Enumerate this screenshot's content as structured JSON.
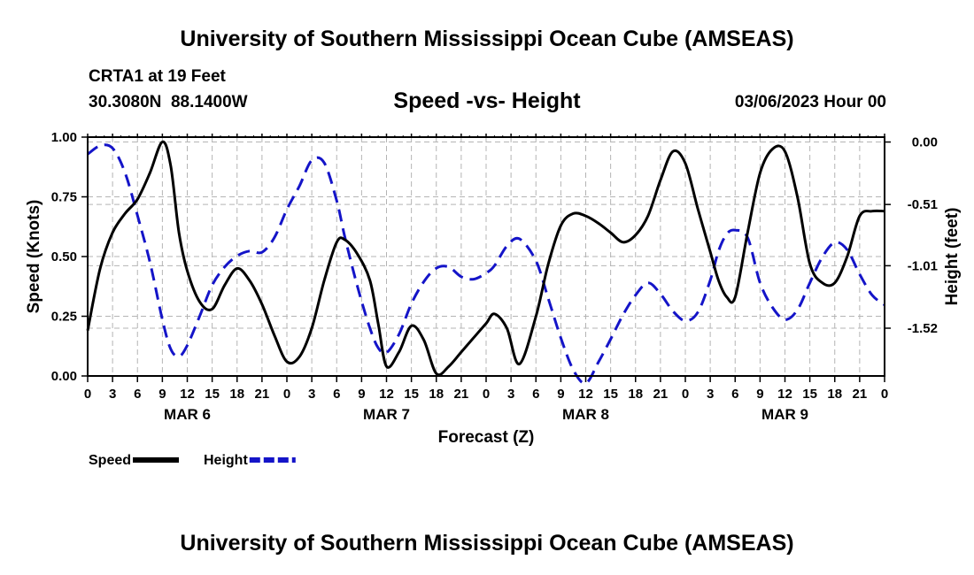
{
  "page": {
    "title_top": "University of Southern Mississippi Ocean Cube (AMSEAS)",
    "title_bottom": "University of Southern Mississippi Ocean Cube (AMSEAS)",
    "station": "CRTA1 at 19 Feet",
    "coords": "30.3080N  88.1400W",
    "datetime": "03/06/2023 Hour 00"
  },
  "chart_data": {
    "type": "line",
    "title": "Speed -vs- Height",
    "xlabel": "Forecast (Z)",
    "ylabel": "Speed (Knots)",
    "y2label": "Height (feet)",
    "x_range": [
      0,
      96
    ],
    "ylim": [
      0,
      1
    ],
    "y2lim": [
      -1.91,
      0.04
    ],
    "x_ticks": [
      0,
      3,
      6,
      9,
      12,
      15,
      18,
      21,
      24,
      27,
      30,
      33,
      36,
      39,
      42,
      45,
      48,
      51,
      54,
      57,
      60,
      63,
      66,
      69,
      72,
      75,
      78,
      81,
      84,
      87,
      90,
      93,
      96
    ],
    "x_tick_labels": [
      "0",
      "3",
      "6",
      "9",
      "12",
      "15",
      "18",
      "21",
      "0",
      "3",
      "6",
      "9",
      "12",
      "15",
      "18",
      "21",
      "0",
      "3",
      "6",
      "9",
      "12",
      "15",
      "18",
      "21",
      "0",
      "3",
      "6",
      "9",
      "12",
      "15",
      "18",
      "21",
      "0"
    ],
    "day_labels": [
      {
        "x": 12,
        "label": "MAR 6"
      },
      {
        "x": 36,
        "label": "MAR 7"
      },
      {
        "x": 60,
        "label": "MAR 8"
      },
      {
        "x": 84,
        "label": "MAR 9"
      }
    ],
    "y_ticks": [
      0,
      0.25,
      0.5,
      0.75,
      1.0
    ],
    "y_tick_labels": [
      "0.00",
      "0.25",
      "0.50",
      "0.75",
      "1.00"
    ],
    "y2_ticks": [
      0.0,
      -0.51,
      -1.01,
      -1.52
    ],
    "y2_tick_labels": [
      "0.00",
      "-0.51",
      "-1.01",
      "-1.52"
    ],
    "legend": [
      "Speed",
      "Height"
    ],
    "series": [
      {
        "name": "Speed",
        "color": "#000000",
        "axis": "left",
        "dash": "solid",
        "x": [
          0,
          1.5,
          3,
          4.5,
          6,
          7.5,
          9,
          10,
          11,
          12,
          13.5,
          15,
          16.5,
          18,
          19.5,
          21,
          22.5,
          24,
          25.5,
          27,
          28.5,
          30,
          31,
          32.5,
          34,
          35,
          36,
          37.5,
          39,
          40.5,
          42,
          43.5,
          45,
          46.5,
          48,
          49,
          50.5,
          52,
          54,
          55.5,
          57,
          58.5,
          60,
          61.5,
          63,
          64.5,
          66,
          67.5,
          69,
          70.5,
          72,
          73.5,
          75,
          76,
          77,
          78,
          79.5,
          81,
          82.5,
          84,
          85.5,
          87,
          88.5,
          90,
          91.5,
          93,
          94.5,
          96
        ],
        "values": [
          0.19,
          0.45,
          0.6,
          0.68,
          0.74,
          0.85,
          0.98,
          0.88,
          0.6,
          0.44,
          0.31,
          0.28,
          0.38,
          0.45,
          0.4,
          0.3,
          0.17,
          0.06,
          0.08,
          0.2,
          0.4,
          0.56,
          0.57,
          0.51,
          0.4,
          0.22,
          0.04,
          0.1,
          0.21,
          0.15,
          0.01,
          0.04,
          0.1,
          0.16,
          0.22,
          0.26,
          0.2,
          0.05,
          0.25,
          0.47,
          0.63,
          0.68,
          0.67,
          0.64,
          0.6,
          0.56,
          0.59,
          0.67,
          0.82,
          0.94,
          0.89,
          0.7,
          0.52,
          0.4,
          0.33,
          0.33,
          0.6,
          0.85,
          0.95,
          0.94,
          0.75,
          0.47,
          0.39,
          0.39,
          0.5,
          0.67,
          0.69,
          0.69
        ]
      },
      {
        "name": "Height",
        "color": "#1414c8",
        "axis": "right",
        "dash": "dashed",
        "x": [
          0,
          1.5,
          3,
          4.5,
          6,
          7.5,
          9,
          10,
          11,
          12,
          13.5,
          15,
          16.5,
          18,
          19.5,
          21,
          22.5,
          24,
          25.5,
          27,
          28.5,
          30,
          31,
          32.5,
          34,
          35,
          36,
          37.5,
          39,
          40.5,
          42,
          43.5,
          45,
          46.5,
          48,
          49,
          50.5,
          52,
          54,
          55.5,
          57,
          58.5,
          60,
          61.5,
          63,
          64.5,
          66,
          67.5,
          69,
          70.5,
          72,
          73.5,
          75,
          76,
          77,
          78,
          79.5,
          81,
          82.5,
          84,
          85.5,
          87,
          88.5,
          90,
          91.5,
          93,
          94.5,
          96
        ],
        "values": [
          -0.1,
          -0.03,
          -0.05,
          -0.25,
          -0.6,
          -0.98,
          -1.45,
          -1.69,
          -1.75,
          -1.66,
          -1.42,
          -1.17,
          -1.02,
          -0.93,
          -0.89,
          -0.9,
          -0.78,
          -0.55,
          -0.36,
          -0.15,
          -0.17,
          -0.48,
          -0.78,
          -1.18,
          -1.52,
          -1.68,
          -1.72,
          -1.57,
          -1.32,
          -1.14,
          -1.03,
          -1.02,
          -1.1,
          -1.12,
          -1.07,
          -1.01,
          -0.85,
          -0.79,
          -0.97,
          -1.28,
          -1.6,
          -1.86,
          -1.97,
          -1.8,
          -1.61,
          -1.41,
          -1.25,
          -1.15,
          -1.24,
          -1.38,
          -1.46,
          -1.39,
          -1.13,
          -0.89,
          -0.75,
          -0.72,
          -0.78,
          -1.15,
          -1.35,
          -1.45,
          -1.37,
          -1.15,
          -0.94,
          -0.82,
          -0.88,
          -1.08,
          -1.25,
          -1.33
        ]
      }
    ]
  }
}
